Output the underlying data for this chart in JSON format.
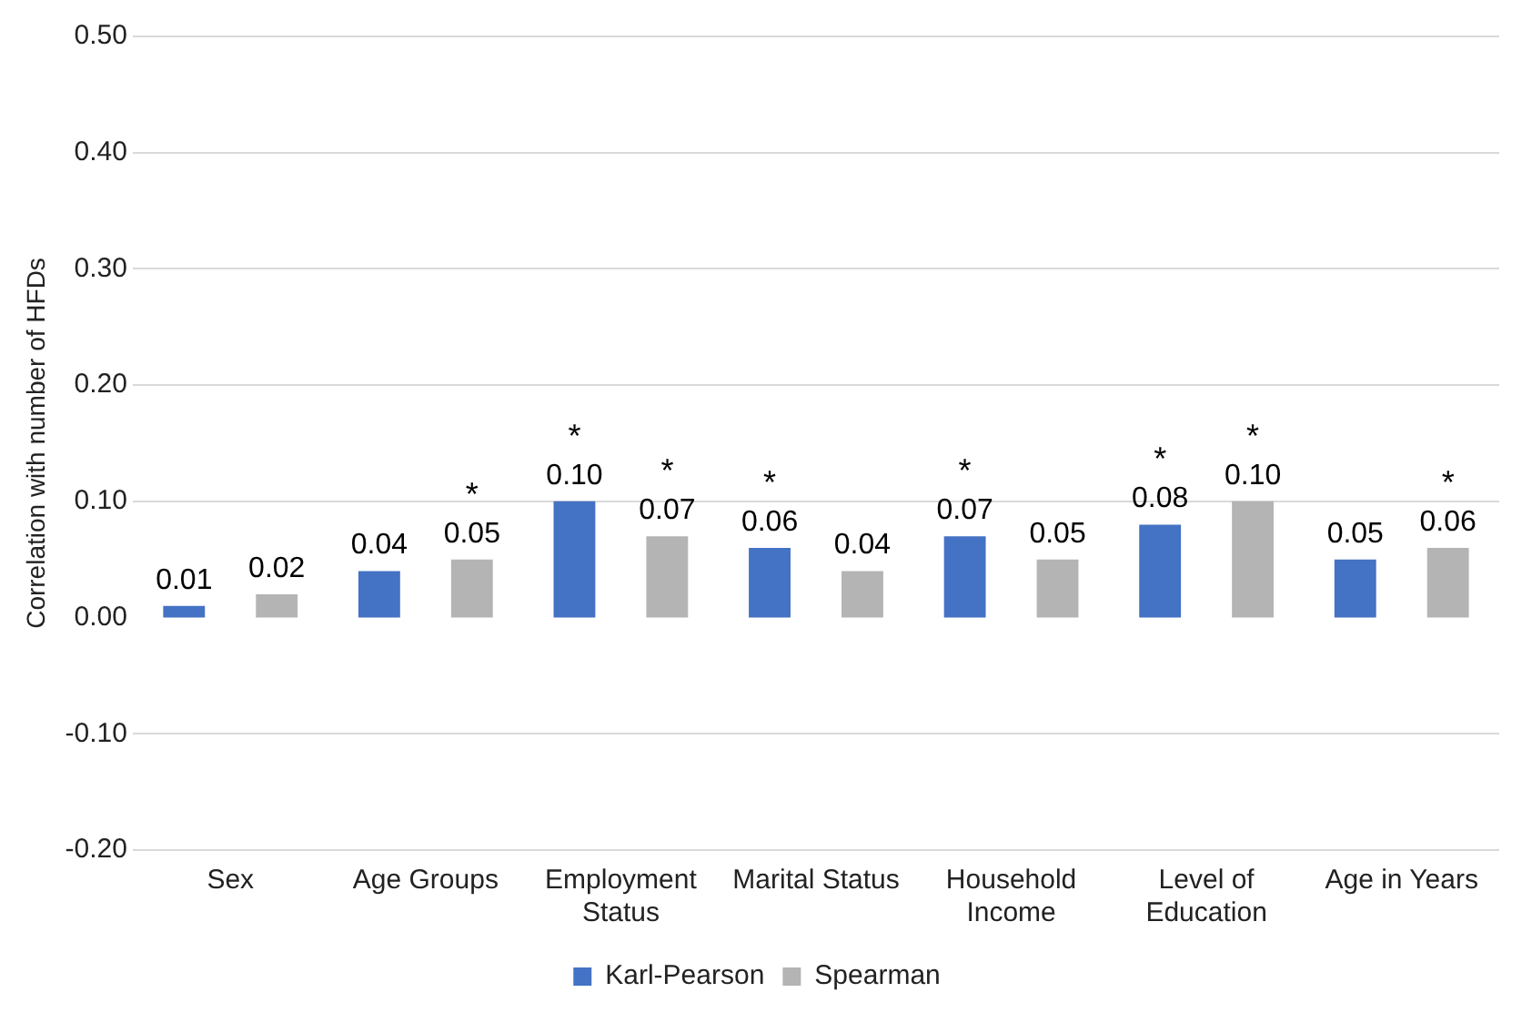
{
  "chart_data": {
    "type": "bar",
    "ylabel": "Correlation with number of HFDs",
    "categories": [
      "Sex",
      "Age Groups",
      "Employment Status",
      "Marital Status",
      "Household Income",
      "Level of Education",
      "Age in Years"
    ],
    "series": [
      {
        "name": "Karl-Pearson",
        "color": "#4472c4",
        "values": [
          0.01,
          0.04,
          0.1,
          0.06,
          0.07,
          0.08,
          0.05
        ],
        "value_labels": [
          "0.01",
          "0.04",
          "0.10",
          "0.06",
          "0.07",
          "0.08",
          "0.05"
        ]
      },
      {
        "name": "Spearman",
        "color": "#b4b4b4",
        "values": [
          0.02,
          0.05,
          0.07,
          0.04,
          0.05,
          0.1,
          0.06
        ],
        "value_labels": [
          "0.02",
          "0.05",
          "0.07",
          "0.04",
          "0.05",
          "0.10",
          "0.06"
        ]
      }
    ],
    "annotations": [
      "*",
      "*",
      "*",
      "*",
      "*",
      "*",
      "*",
      "*"
    ],
    "ylim": [
      -0.2,
      0.5
    ],
    "yticks": [
      {
        "value": -0.2,
        "label": "-0.20"
      },
      {
        "value": -0.1,
        "label": "-0.10"
      },
      {
        "value": 0,
        "label": "0.00"
      },
      {
        "value": 0.1,
        "label": "0.10"
      },
      {
        "value": 0.2,
        "label": "0.20"
      },
      {
        "value": 0.3,
        "label": "0.30"
      },
      {
        "value": 0.4,
        "label": "0.40"
      },
      {
        "value": 0.5,
        "label": "0.50"
      }
    ],
    "grid": "y",
    "legend": "bottom"
  }
}
